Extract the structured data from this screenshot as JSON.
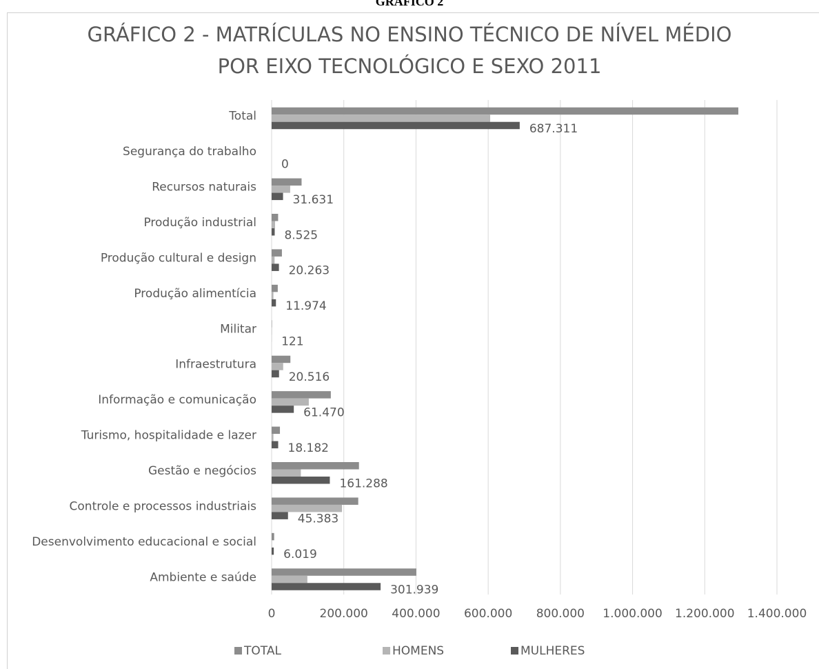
{
  "header": {
    "title": "GRÁFICO 2"
  },
  "chart_data": {
    "type": "hbar",
    "title": [
      "GRÁFICO 2 - MATRÍCULAS NO ENSINO TÉCNICO DE NÍVEL MÉDIO",
      "POR EIXO TECNOLÓGICO  E SEXO 2011"
    ],
    "categories": [
      "Total",
      "Segurança do trabalho",
      "Recursos naturais",
      "Produção industrial",
      "Produção cultural e design",
      "Produção alimentícia",
      "Militar",
      "Infraestrutura",
      "Informação e comunicação",
      "Turismo, hospitalidade e lazer",
      "Gestão e negócios",
      "Controle e processos industriais",
      "Desenvolvimento educacional e social",
      "Ambiente e saúde"
    ],
    "series": [
      {
        "name": "TOTAL",
        "color": "#8c8c8c",
        "values": [
          1293000,
          0,
          83000,
          18000,
          28500,
          17000,
          1000,
          52000,
          164000,
          23000,
          242000,
          240000,
          7000,
          401000
        ]
      },
      {
        "name": "HOMENS",
        "color": "#b5b5b5",
        "values": [
          605500,
          0,
          51400,
          9500,
          8200,
          5000,
          900,
          32000,
          103000,
          5000,
          81000,
          195000,
          1000,
          99000
        ]
      },
      {
        "name": "MULHERES",
        "color": "#5a5a5a",
        "values": [
          687311,
          0,
          31631,
          8525,
          20263,
          11974,
          121,
          20516,
          61470,
          18182,
          161288,
          45383,
          6019,
          301939
        ],
        "value_labels": [
          "687.311",
          "0",
          "31.631",
          "8.525",
          "20.263",
          "11.974",
          "121",
          "20.516",
          "61.470",
          "18.182",
          "161.288",
          "45.383",
          "6.019",
          "301.939"
        ]
      }
    ],
    "xlim": [
      0,
      1400000
    ],
    "xticks": [
      0,
      {
        "value": 200000,
        "label": "200.000"
      },
      {
        "value": 400000,
        "label": "400.000"
      },
      {
        "value": 600000,
        "label": "600.000"
      },
      {
        "value": 800000,
        "label": "800.000"
      },
      {
        "value": 1000000,
        "label": "1.000.000"
      },
      {
        "value": 1200000,
        "label": "1.200.000"
      },
      {
        "value": 1400000,
        "label": "1.400.000"
      }
    ],
    "grid": true,
    "legend": "bottom"
  }
}
